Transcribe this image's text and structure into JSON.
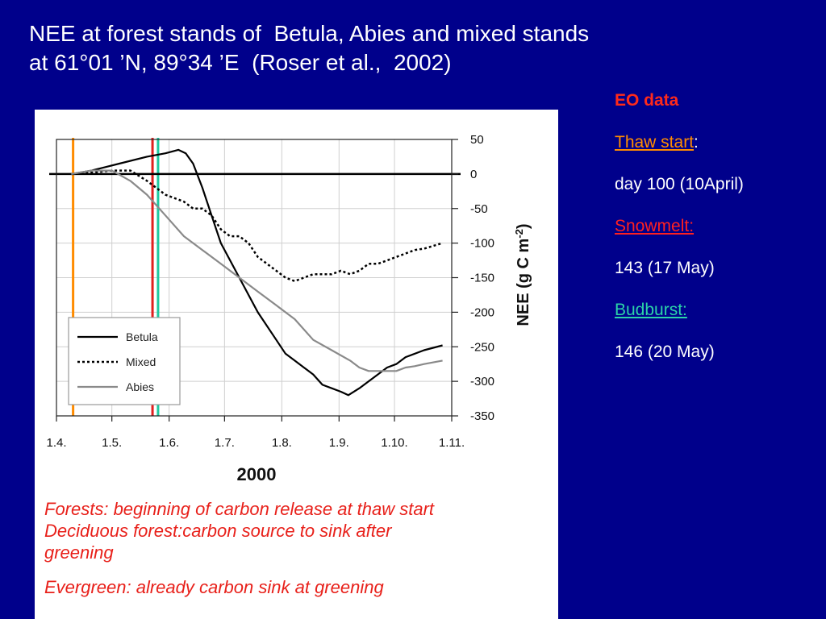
{
  "slide": {
    "title_line1": "NEE at forest stands of  Betula, Abies and mixed stands",
    "title_line2": "at 61°01 ’N, 89°34 ’E  (Roser et al.,  2002)"
  },
  "sidebar": {
    "heading": "EO data",
    "items": [
      {
        "label": "Thaw start",
        "suffix": ":",
        "value": "day 100 (10April)",
        "color": "#ff8c00"
      },
      {
        "label": "Snowmelt:",
        "suffix": "",
        "value": "143 (17 May)",
        "color": "#ff2020"
      },
      {
        "label": "Budburst:",
        "suffix": "",
        "value": "146 (20 May)",
        "color": "#2bd3a8"
      }
    ]
  },
  "captions": {
    "line1": "Forests: beginning of carbon release at thaw start",
    "line2": "Deciduous forest:carbon source to sink  after",
    "line3": "greening",
    "line4": "Evergreen: already carbon sink at greening"
  },
  "chart_data": {
    "type": "line",
    "xlabel": "2000",
    "ylabel": "NEE (g C m-2)",
    "ylim": [
      -350,
      50
    ],
    "xlim": [
      91,
      305
    ],
    "x_ticks": [
      {
        "label": "1.4.",
        "doy": 91
      },
      {
        "label": "1.5.",
        "doy": 121
      },
      {
        "label": "1.6.",
        "doy": 152
      },
      {
        "label": "1.7.",
        "doy": 182
      },
      {
        "label": "1.8.",
        "doy": 213
      },
      {
        "label": "1.9.",
        "doy": 244
      },
      {
        "label": "1.10.",
        "doy": 274
      },
      {
        "label": "1.11.",
        "doy": 305
      }
    ],
    "y_ticks": [
      50,
      0,
      -50,
      -100,
      -150,
      -200,
      -250,
      -300,
      -350
    ],
    "grid": true,
    "legend": "bottom-left",
    "series": [
      {
        "name": "Betula",
        "style": "solid",
        "color": "#000000",
        "x": [
          99,
          110,
          125,
          140,
          150,
          157,
          161,
          165,
          170,
          175,
          180,
          190,
          200,
          210,
          215,
          220,
          225,
          230,
          235,
          240,
          245,
          249,
          255,
          260,
          265,
          270,
          275,
          280,
          290,
          300
        ],
        "y": [
          0,
          5,
          15,
          25,
          30,
          35,
          30,
          15,
          -20,
          -60,
          -100,
          -150,
          -200,
          -240,
          -260,
          -270,
          -280,
          -290,
          -305,
          -310,
          -315,
          -320,
          -310,
          -300,
          -290,
          -280,
          -275,
          -265,
          -255,
          -248
        ]
      },
      {
        "name": "Mixed",
        "style": "dotted",
        "color": "#000000",
        "x": [
          99,
          110,
          121,
          131,
          140,
          150,
          160,
          165,
          170,
          175,
          180,
          185,
          190,
          195,
          200,
          205,
          210,
          215,
          220,
          225,
          230,
          235,
          240,
          245,
          250,
          255,
          260,
          265,
          270,
          275,
          280,
          285,
          290,
          295,
          300
        ],
        "y": [
          0,
          2,
          5,
          5,
          -10,
          -30,
          -40,
          -50,
          -50,
          -60,
          -80,
          -90,
          -90,
          -100,
          -120,
          -130,
          -140,
          -150,
          -155,
          -150,
          -145,
          -145,
          -145,
          -140,
          -145,
          -140,
          -130,
          -130,
          -125,
          -120,
          -115,
          -110,
          -108,
          -104,
          -100
        ]
      },
      {
        "name": "Abies",
        "style": "solid",
        "color": "#8a8a8a",
        "x": [
          99,
          110,
          121,
          131,
          140,
          150,
          160,
          170,
          180,
          190,
          200,
          210,
          220,
          230,
          240,
          250,
          255,
          260,
          265,
          270,
          275,
          280,
          285,
          290,
          300
        ],
        "y": [
          0,
          5,
          5,
          -10,
          -30,
          -60,
          -90,
          -110,
          -130,
          -150,
          -170,
          -190,
          -210,
          -240,
          -255,
          -270,
          -280,
          -285,
          -285,
          -285,
          -285,
          -280,
          -278,
          -275,
          -270
        ]
      }
    ],
    "markers": [
      {
        "name": "Thaw start",
        "doy": 100,
        "color": "#ff8c00"
      },
      {
        "name": "Snowmelt",
        "doy": 143,
        "color": "#e02020"
      },
      {
        "name": "Budburst",
        "doy": 146,
        "color": "#20c8a0"
      }
    ]
  }
}
